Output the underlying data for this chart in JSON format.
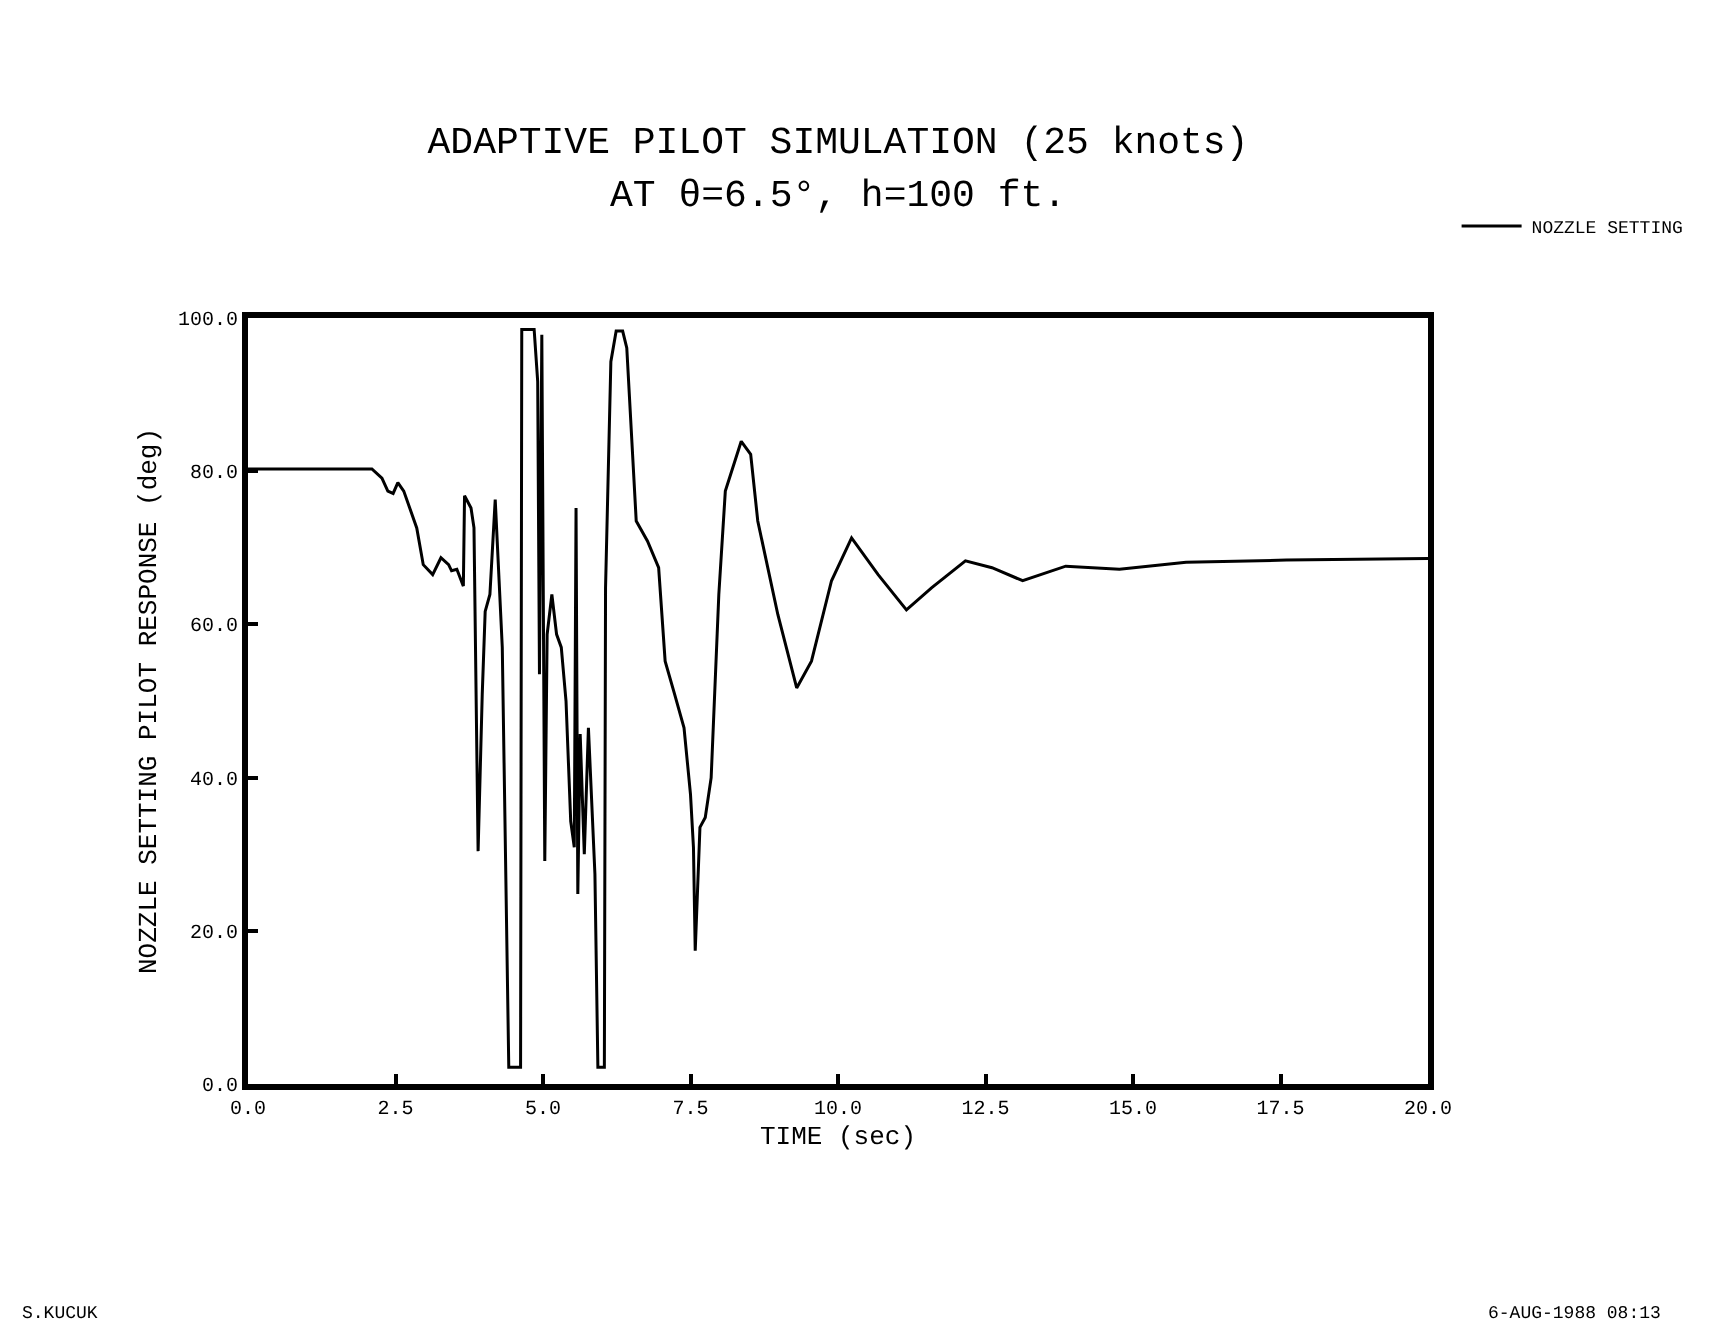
{
  "chart_data": {
    "type": "line",
    "title": "ADAPTIVE PILOT SIMULATION (25 knots)",
    "subtitle": "AT θ=6.5°, h=100 ft.",
    "xlabel": "TIME (sec)",
    "ylabel": "NOZZLE SETTING PILOT RESPONSE (deg)",
    "series": [
      {
        "name": "NOZZLE SETTING",
        "color": "#000000",
        "x": [
          0,
          2.1,
          2.27,
          2.37,
          2.46,
          2.54,
          2.64,
          2.86,
          2.97,
          3.13,
          3.27,
          3.4,
          3.45,
          3.54,
          3.65,
          3.67,
          3.78,
          3.83,
          3.9,
          3.97,
          4.02,
          4.1,
          4.19,
          4.31,
          4.42,
          4.62,
          4.64,
          4.85,
          4.91,
          4.94,
          4.98,
          5.03,
          5.07,
          5.15,
          5.23,
          5.31,
          5.39,
          5.47,
          5.53,
          5.56,
          5.59,
          5.63,
          5.7,
          5.77,
          5.88,
          5.93,
          6.04,
          6.06,
          6.15,
          6.24,
          6.35,
          6.42,
          6.58,
          6.77,
          6.96,
          7.07,
          7.23,
          7.39,
          7.5,
          7.55,
          7.58,
          7.66,
          7.75,
          7.85,
          7.98,
          8.09,
          8.36,
          8.52,
          8.64,
          8.98,
          9.3,
          9.55,
          9.89,
          10.23,
          10.68,
          11.16,
          11.59,
          12.16,
          12.61,
          13.13,
          13.86,
          14.77,
          15.9,
          17.6,
          20
        ],
        "values": [
          80.3,
          80.3,
          79.1,
          77.4,
          77.1,
          78.5,
          77.4,
          72.6,
          67.8,
          66.5,
          68.7,
          67.8,
          67,
          67.2,
          65,
          76.8,
          75.2,
          72.6,
          30.4,
          50.9,
          61.7,
          63.9,
          76.3,
          57,
          2.2,
          2.2,
          98.5,
          98.5,
          91.7,
          53.5,
          97.8,
          29.1,
          58.7,
          63.9,
          58.7,
          57,
          50,
          34.3,
          30.9,
          75.2,
          24.8,
          45.7,
          30,
          46.5,
          27.4,
          2.2,
          2.2,
          64.8,
          94.3,
          98.3,
          98.3,
          96.1,
          73.5,
          70.9,
          67.4,
          55.2,
          50.9,
          46.5,
          37.8,
          30.9,
          17.4,
          33.5,
          34.8,
          40,
          63.9,
          77.4,
          83.9,
          82.2,
          73.5,
          61.3,
          51.7,
          55.2,
          65.7,
          71.3,
          66.5,
          61.9,
          64.8,
          68.3,
          67.4,
          65.7,
          67.6,
          67.2,
          68.1,
          68.4,
          68.6
        ]
      }
    ],
    "xlim": [
      0,
      20
    ],
    "ylim": [
      0,
      100
    ],
    "xticks": [
      {
        "value": 0,
        "label": "0.0"
      },
      2.5,
      {
        "value": 5,
        "label": "5.0"
      },
      7.5,
      {
        "value": 10,
        "label": "10.0"
      },
      12.5,
      {
        "value": 15,
        "label": "15.0"
      },
      17.5,
      {
        "value": 20,
        "label": "20.0"
      }
    ],
    "yticks": [
      {
        "value": 0,
        "label": "0.0"
      },
      {
        "value": 20,
        "label": "20.0"
      },
      {
        "value": 40,
        "label": "40.0"
      },
      {
        "value": 60,
        "label": "60.0"
      },
      {
        "value": 80,
        "label": "80.0"
      },
      {
        "value": 100,
        "label": "100.0"
      }
    ],
    "legend": "top right",
    "marker": "none",
    "line_style": "solid",
    "annotations": [
      "S.KUCUK",
      "6-AUG-1988 08:13"
    ]
  }
}
